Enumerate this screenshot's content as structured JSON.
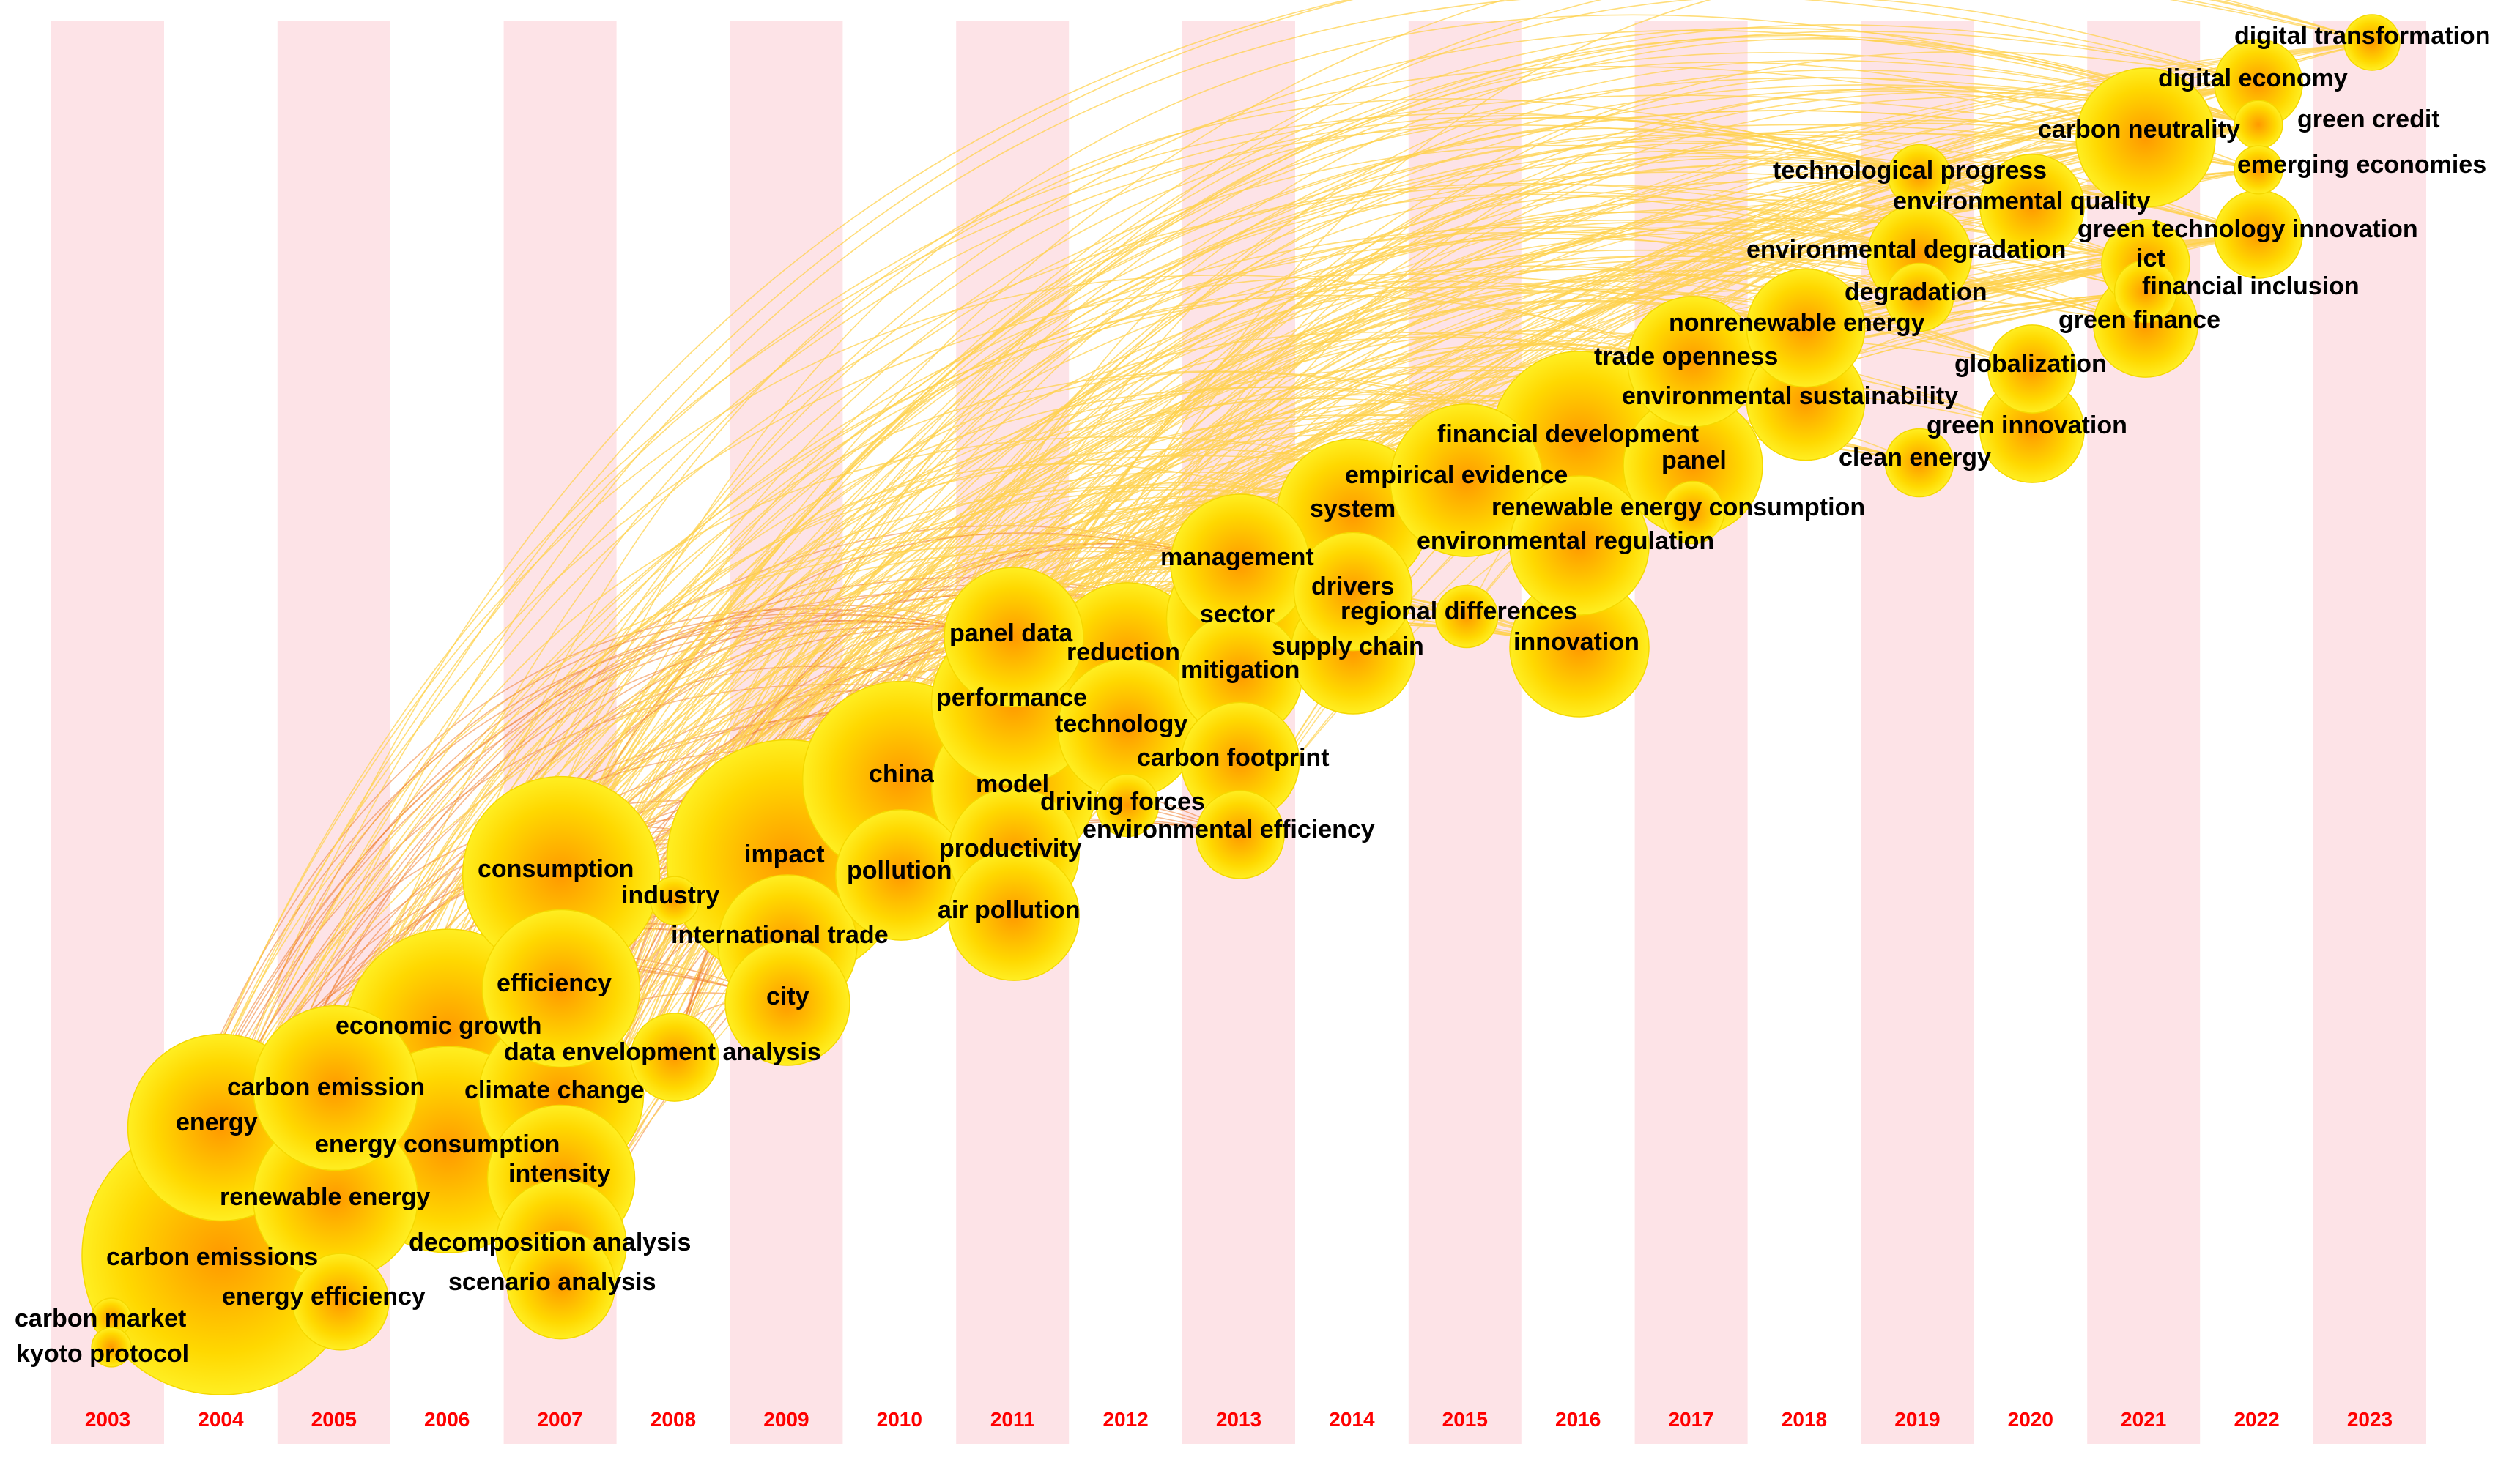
{
  "chart_data": {
    "type": "timezone-map",
    "title": "",
    "years": [
      "2003",
      "2004",
      "2005",
      "2006",
      "2007",
      "2008",
      "2009",
      "2010",
      "2011",
      "2012",
      "2013",
      "2014",
      "2015",
      "2016",
      "2017",
      "2018",
      "2019",
      "2020",
      "2021",
      "2022",
      "2023"
    ],
    "keywords": [
      {
        "label": "carbon emissions",
        "year": "2004",
        "size": 1.0
      },
      {
        "label": "carbon market",
        "year": "2003",
        "size": 0.02
      },
      {
        "label": "kyoto protocol",
        "year": "2003",
        "size": 0.02
      },
      {
        "label": "energy efficiency",
        "year": "2005",
        "size": 0.12
      },
      {
        "label": "energy",
        "year": "2004",
        "size": 0.45
      },
      {
        "label": "renewable energy",
        "year": "2005",
        "size": 0.35
      },
      {
        "label": "carbon emission",
        "year": "2005",
        "size": 0.35
      },
      {
        "label": "economic growth",
        "year": "2006",
        "size": 0.55
      },
      {
        "label": "energy consumption",
        "year": "2006",
        "size": 0.55
      },
      {
        "label": "efficiency",
        "year": "2007",
        "size": 0.32
      },
      {
        "label": "climate change",
        "year": "2007",
        "size": 0.35
      },
      {
        "label": "intensity",
        "year": "2007",
        "size": 0.28
      },
      {
        "label": "decomposition analysis",
        "year": "2007",
        "size": 0.22
      },
      {
        "label": "scenario analysis",
        "year": "2007",
        "size": 0.15
      },
      {
        "label": "consumption",
        "year": "2007",
        "size": 0.5
      },
      {
        "label": "industry",
        "year": "2008",
        "size": 0.03
      },
      {
        "label": "data envelopment analysis",
        "year": "2008",
        "size": 0.1
      },
      {
        "label": "impact",
        "year": "2009",
        "size": 0.75
      },
      {
        "label": "international trade",
        "year": "2009",
        "size": 0.25
      },
      {
        "label": "city",
        "year": "2009",
        "size": 0.2
      },
      {
        "label": "china",
        "year": "2010",
        "size": 0.5
      },
      {
        "label": "pollution",
        "year": "2010",
        "size": 0.22
      },
      {
        "label": "model",
        "year": "2011",
        "size": 0.35
      },
      {
        "label": "performance",
        "year": "2011",
        "size": 0.35
      },
      {
        "label": "panel data",
        "year": "2011",
        "size": 0.25
      },
      {
        "label": "productivity",
        "year": "2011",
        "size": 0.22
      },
      {
        "label": "air pollution",
        "year": "2011",
        "size": 0.22
      },
      {
        "label": "driving forces",
        "year": "2012",
        "size": 0.05
      },
      {
        "label": "technology",
        "year": "2012",
        "size": 0.25
      },
      {
        "label": "reduction",
        "year": "2012",
        "size": 0.3
      },
      {
        "label": "environmental efficiency",
        "year": "2013",
        "size": 0.1
      },
      {
        "label": "carbon footprint",
        "year": "2013",
        "size": 0.18
      },
      {
        "label": "mitigation",
        "year": "2013",
        "size": 0.2
      },
      {
        "label": "sector",
        "year": "2013",
        "size": 0.28
      },
      {
        "label": "management",
        "year": "2013",
        "size": 0.25
      },
      {
        "label": "supply chain",
        "year": "2014",
        "size": 0.2
      },
      {
        "label": "drivers",
        "year": "2014",
        "size": 0.18
      },
      {
        "label": "system",
        "year": "2014",
        "size": 0.3
      },
      {
        "label": "regional differences",
        "year": "2015",
        "size": 0.05
      },
      {
        "label": "empirical evidence",
        "year": "2015",
        "size": 0.3
      },
      {
        "label": "innovation",
        "year": "2016",
        "size": 0.25
      },
      {
        "label": "environmental regulation",
        "year": "2016",
        "size": 0.25
      },
      {
        "label": "financial development",
        "year": "2016",
        "size": 0.4
      },
      {
        "label": "renewable energy consumption",
        "year": "2017",
        "size": 0.05
      },
      {
        "label": "panel",
        "year": "2017",
        "size": 0.25
      },
      {
        "label": "trade openness",
        "year": "2017",
        "size": 0.22
      },
      {
        "label": "environmental sustainability",
        "year": "2018",
        "size": 0.18
      },
      {
        "label": "nonrenewable energy",
        "year": "2018",
        "size": 0.18
      },
      {
        "label": "clean energy",
        "year": "2019",
        "size": 0.06
      },
      {
        "label": "degradation",
        "year": "2019",
        "size": 0.06
      },
      {
        "label": "environmental degradation",
        "year": "2019",
        "size": 0.14
      },
      {
        "label": "technological progress",
        "year": "2019",
        "size": 0.05
      },
      {
        "label": "green innovation",
        "year": "2020",
        "size": 0.14
      },
      {
        "label": "globalization",
        "year": "2020",
        "size": 0.1
      },
      {
        "label": "environmental quality",
        "year": "2020",
        "size": 0.14
      },
      {
        "label": "green finance",
        "year": "2021",
        "size": 0.14
      },
      {
        "label": "financial inclusion",
        "year": "2021",
        "size": 0.05
      },
      {
        "label": "ict",
        "year": "2021",
        "size": 0.1
      },
      {
        "label": "carbon neutrality",
        "year": "2021",
        "size": 0.25
      },
      {
        "label": "green technology innovation",
        "year": "2022",
        "size": 0.1
      },
      {
        "label": "green credit",
        "year": "2022",
        "size": 0.03
      },
      {
        "label": "emerging economies",
        "year": "2022",
        "size": 0.03
      },
      {
        "label": "digital economy",
        "year": "2022",
        "size": 0.1
      },
      {
        "label": "digital transformation",
        "year": "2023",
        "size": 0.04
      }
    ],
    "colors": {
      "band": "#fde3e7",
      "year_label": "#ff0000",
      "node_outer": "#ffee00",
      "node_mid": "#ffcc00",
      "node_core": "#ff9900",
      "link_warm": "#f08030",
      "link_light": "#ffd24d",
      "text": "#000000"
    }
  }
}
